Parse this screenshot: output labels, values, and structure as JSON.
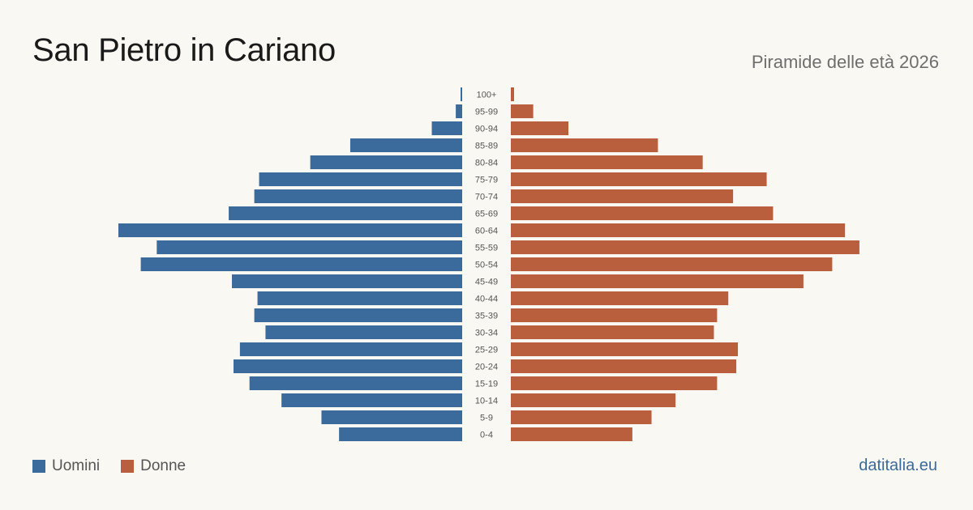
{
  "header": {
    "title": "San Pietro in Cariano",
    "subtitle": "Piramide delle età 2026"
  },
  "legend": {
    "men_label": "Uomini",
    "women_label": "Donne"
  },
  "brand": "datitalia.eu",
  "chart_data": {
    "type": "bar",
    "orientation": "horizontal-pyramid",
    "categories": [
      "100+",
      "95-99",
      "90-94",
      "85-89",
      "80-84",
      "75-79",
      "70-74",
      "65-69",
      "60-64",
      "55-59",
      "50-54",
      "45-49",
      "40-44",
      "35-39",
      "30-34",
      "25-29",
      "20-24",
      "15-19",
      "10-14",
      "5-9",
      "0-4"
    ],
    "series": [
      {
        "name": "Uomini",
        "color": "#3b6a9c",
        "values": [
          1,
          4,
          19,
          70,
          95,
          127,
          130,
          146,
          215,
          191,
          201,
          144,
          128,
          130,
          123,
          139,
          143,
          133,
          113,
          88,
          77
        ]
      },
      {
        "name": "Donne",
        "color": "#b95f3d",
        "values": [
          1,
          14,
          36,
          92,
          120,
          160,
          139,
          164,
          209,
          218,
          201,
          183,
          136,
          129,
          127,
          142,
          141,
          129,
          103,
          88,
          76
        ]
      }
    ],
    "x_scale_max": 215,
    "grid": false,
    "legend_position": "bottom-left"
  }
}
